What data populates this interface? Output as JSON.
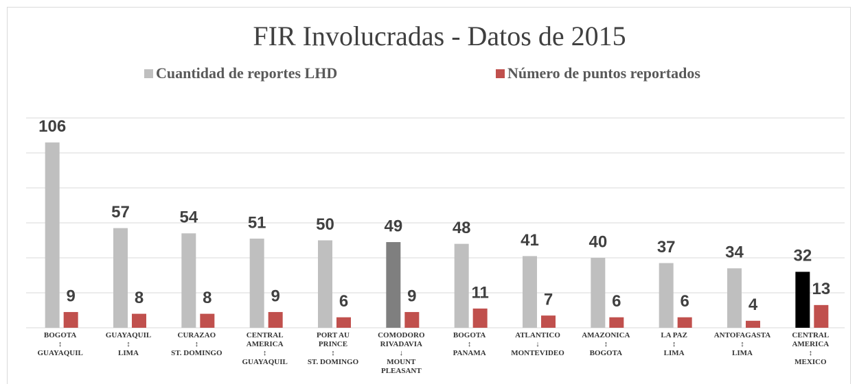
{
  "chart_data": {
    "type": "bar",
    "title": "FIR Involucradas - Datos de 2015",
    "categories": [
      "BOGOTA\n↕\nGUAYAQUIL",
      "GUAYAQUIL\n↕\nLIMA",
      "CURAZAO\n↕\nST. DOMINGO",
      "CENTRAL\nAMERICA\n↕\nGUAYAQUIL",
      "PORT AU\nPRINCE\n↕\nST. DOMINGO",
      "COMODORO\nRIVADAVIA\n↓\nMOUNT\nPLEASANT",
      "BOGOTA\n↕\nPANAMA",
      "ATLANTICO\n↓\nMONTEVIDEO",
      "AMAZONICA\n↕\nBOGOTA",
      "LA PAZ\n↕\nLIMA",
      "ANTOFAGASTA\n↕\nLIMA",
      "CENTRAL\nAMERICA\n↕\nMEXICO"
    ],
    "series": [
      {
        "name": "Cuantidad de reportes LHD",
        "color": "#bfbfbf",
        "point_colors": [
          "#bfbfbf",
          "#bfbfbf",
          "#bfbfbf",
          "#bfbfbf",
          "#bfbfbf",
          "#7f7f7f",
          "#bfbfbf",
          "#bfbfbf",
          "#bfbfbf",
          "#bfbfbf",
          "#bfbfbf",
          "#000000"
        ],
        "values": [
          106,
          57,
          54,
          51,
          50,
          49,
          48,
          41,
          40,
          37,
          34,
          32
        ]
      },
      {
        "name": "Número de puntos reportados",
        "color": "#c0504d",
        "values": [
          9,
          8,
          8,
          9,
          6,
          9,
          11,
          7,
          6,
          6,
          4,
          13
        ]
      }
    ],
    "ylim": [
      0,
      120
    ],
    "yticks": [
      0,
      20,
      40,
      60,
      80,
      100,
      120
    ],
    "grid": true
  }
}
